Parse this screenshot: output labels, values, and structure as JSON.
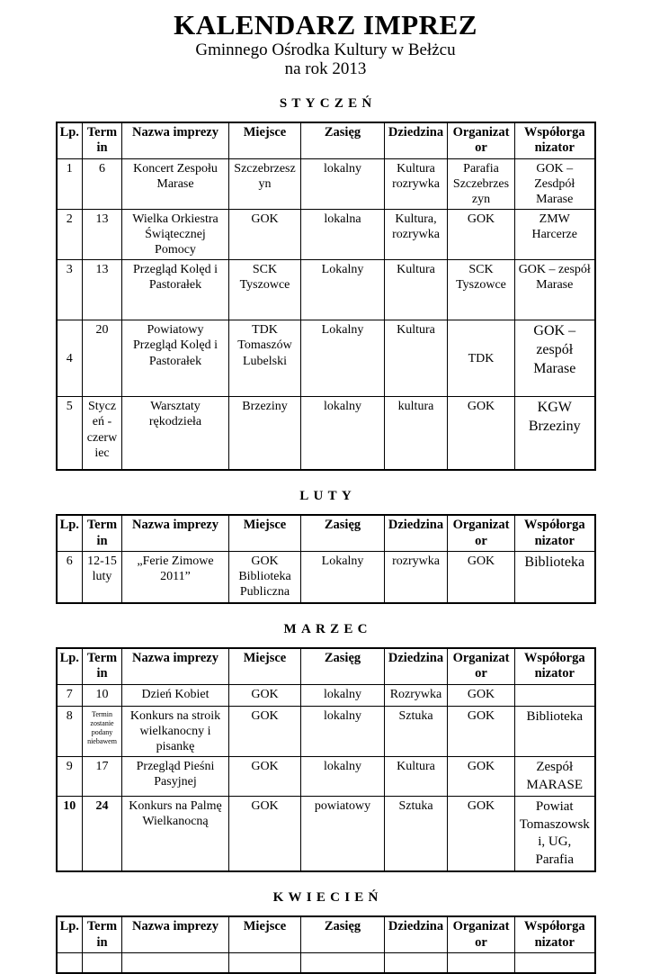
{
  "page": {
    "title": "KALENDARZ IMPREZ",
    "subtitle_line1": "Gminnego Ośrodka Kultury w Bełżcu",
    "subtitle_line2": "na rok 2013"
  },
  "columns": [
    "Lp.",
    "Termin",
    "Nazwa imprezy",
    "Miejsce",
    "Zasięg",
    "Dziedzina",
    "Organizator",
    "Współorga nizator"
  ],
  "sections": [
    {
      "id": "styczen",
      "month": "STYCZEŃ",
      "rows": [
        [
          "1",
          "6",
          "Koncert Zespołu Marase",
          "Szczebrzeszyn",
          "lokalny",
          "Kultura rozrywka",
          "Parafia Szczebrzeszyn",
          "GOK – Zesdpół Marase"
        ],
        [
          "2",
          "13",
          "Wielka Orkiestra Świątecznej Pomocy",
          "GOK",
          "lokalna",
          "Kultura, rozrywka",
          "GOK",
          "ZMW Harcerze"
        ],
        [
          "3",
          "13",
          "Przegląd Kolęd i Pastorałek",
          "SCK Tyszowce",
          "Lokalny",
          "Kultura",
          "SCK Tyszowce",
          "GOK – zespół Marase"
        ],
        [
          "4",
          "20",
          "Powiatowy Przegląd Kolęd i Pastorałek",
          "TDK Tomaszów Lubelski",
          "Lokalny",
          "Kultura",
          "TDK",
          "GOK – zespół Marase"
        ],
        [
          "5",
          "Styczeń -czerwiec",
          "Warsztaty rękodzieła",
          "Brzeziny",
          "lokalny",
          "kultura",
          "GOK",
          "KGW Brzeziny"
        ]
      ]
    },
    {
      "id": "luty",
      "month": "LUTY",
      "rows": [
        [
          "6",
          "12-15 luty",
          "„Ferie Zimowe 2011”",
          "GOK Biblioteka Publiczna",
          "Lokalny",
          "rozrywka",
          "GOK",
          "Biblioteka"
        ]
      ]
    },
    {
      "id": "marzec",
      "month": "MARZEC",
      "rows": [
        [
          "7",
          "10",
          "Dzień Kobiet",
          "GOK",
          "lokalny",
          "Rozrywka",
          "GOK",
          ""
        ],
        [
          "8",
          "Termin zostanie podany niebawem",
          "Konkurs na stroik wielkanocny i pisankę",
          "GOK",
          "lokalny",
          "Sztuka",
          "GOK",
          "Biblioteka"
        ],
        [
          "9",
          "17",
          "Przegląd Pieśni Pasyjnej",
          "GOK",
          "lokalny",
          "Kultura",
          "GOK",
          "Zespół MARASE"
        ],
        [
          "10",
          "24",
          "Konkurs na Palmę Wielkanocną",
          "GOK",
          "powiatowy",
          "Sztuka",
          "GOK",
          "Powiat Tomaszowski, UG, Parafia"
        ]
      ]
    },
    {
      "id": "kwiecien",
      "month": "KWIECIEŃ",
      "rows": [
        [
          "",
          "",
          "",
          "",
          "",
          "",
          "",
          ""
        ]
      ]
    }
  ],
  "colors": {
    "text": "#000000",
    "border": "#000000",
    "background": "#ffffff"
  }
}
